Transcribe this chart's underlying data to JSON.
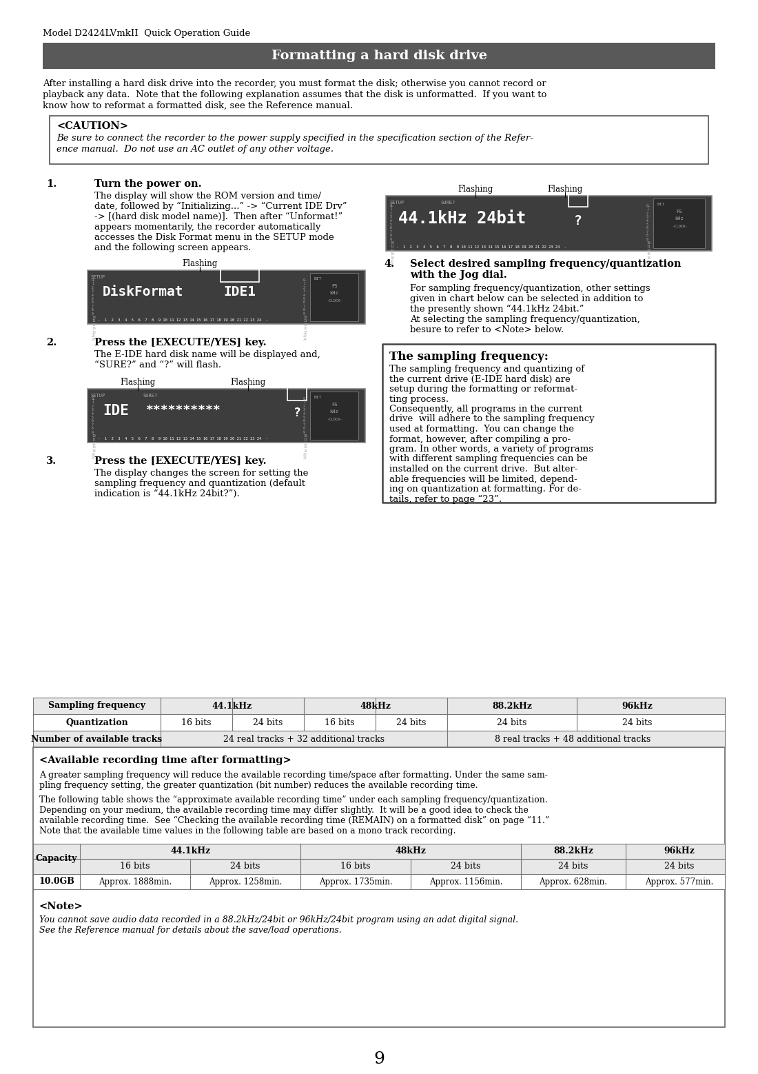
{
  "page_header": "Model D2424LVmkII  Quick Operation Guide",
  "section_title": "Formatting a hard disk drive",
  "section_title_bg": "#595959",
  "section_title_color": "#ffffff",
  "intro_text_line1": "After installing a hard disk drive into the recorder, you must format the disk; otherwise you cannot record or",
  "intro_text_line2": "playback any data.  Note that the following explanation assumes that the disk is unformatted.  If you want to",
  "intro_text_line3": "know how to reformat a formatted disk, see the Reference manual.",
  "caution_title": "<CAUTION>",
  "caution_line1": "Be sure to connect the recorder to the power supply specified in the specification section of the Refer-",
  "caution_line2": "ence manual.  Do not use an AC outlet of any other voltage.",
  "s1_num": "1.",
  "s1_title": "Turn the power on.",
  "s1_body": "The display will show the ROM version and time/\ndate, followed by “Initializing...” -> “Current IDE Drv”\n-> [(hard disk model name)].  Then after “Unformat!”\nappears momentarily, the recorder automatically\naccesses the Disk Format menu in the SETUP mode\nand the following screen appears.",
  "s2_num": "2.",
  "s2_title": "Press the [EXECUTE/YES] key.",
  "s2_body": "The E-IDE hard disk name will be displayed and,\n“SURE?” and “?” will flash.",
  "s3_num": "3.",
  "s3_title": "Press the [EXECUTE/YES] key.",
  "s3_body": "The display changes the screen for setting the\nsampling frequency and quantization (default\nindication is “44.1kHz 24bit?”).",
  "s4_num": "4.",
  "s4_title": "Select desired sampling frequency/quantization\nwith the Jog dial.",
  "s4_body_line1": "For sampling frequency/quantization, other settings",
  "s4_body_line2": "given in chart below can be selected in addition to",
  "s4_body_line3": "the presently shown “44.1kHz 24bit.”",
  "s4_body_line4": "At selecting the sampling frequency/quantization,",
  "s4_body_line5": "besure to refer to <Note> below.",
  "sampling_box_title": "The sampling frequency:",
  "sampling_box_lines": [
    "The sampling frequency and quantizing of",
    "the current drive (E-IDE hard disk) are",
    "setup during the formatting or reformat-",
    "ting process.",
    "Consequently, all programs in the current",
    "drive  will adhere to the sampling frequency",
    "used at formatting.  You can change the",
    "format, however, after compiling a pro-",
    "gram. In other words, a variety of programs",
    "with different sampling frequencies can be",
    "installed on the current drive.  But alter-",
    "able frequencies will be limited, depend-",
    "ing on quantization at formatting. For de-",
    "tails, refer to page “23”."
  ],
  "avail_title": "<Available recording time after formatting>",
  "avail_body1": "A greater sampling frequency will reduce the available recording time/space after formatting. Under the same sam-\npling frequency setting, the greater quantization (bit number) reduces the available recording time.",
  "avail_body2_bold": "approximate available recording time",
  "avail_body2_bold2": "Checking the available recording time (REMAIN) on a formatted disk",
  "avail_body2": "The following table shows the “approximate available recording time” under each sampling frequency/quantization.\nDepending on your medium, the available recording time may differ slightly.  It will be a good idea to check the\navailable recording time.  See “Checking the available recording time (REMAIN) on a formatted disk” on page “11.”\nNote that the available time values in the following table are based on a mono track recording.",
  "note_title": "<Note>",
  "note_line1": "You cannot save audio data recorded in a 88.2kHz/24bit or 96kHz/24bit program using an adat digital signal.",
  "note_line2": "See the Reference manual for details about the save/load operations.",
  "page_number": "9",
  "display_bg": "#3d3d3d",
  "table2_row": [
    "10.0GB",
    "Approx. 1888min.",
    "Approx. 1258min.",
    "Approx. 1735min.",
    "Approx. 1156min.",
    "Approx. 628min.",
    "Approx. 577min."
  ]
}
